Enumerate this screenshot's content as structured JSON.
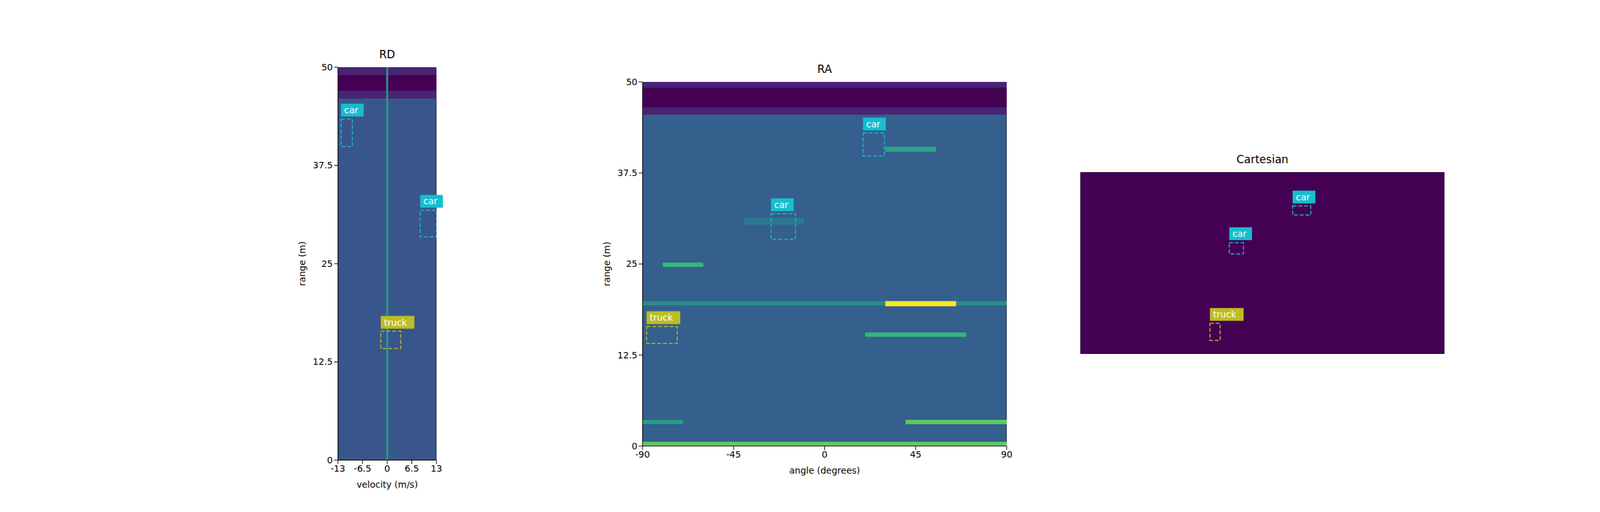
{
  "chart_data": [
    {
      "type": "heatmap",
      "title": "RD",
      "x_label": "velocity (m/s)",
      "y_label": "range (m)",
      "xlim": [
        -13,
        13
      ],
      "ylim": [
        0,
        50
      ],
      "xticks": [
        -13,
        -6.5,
        0,
        6.5,
        13
      ],
      "yticks": [
        0,
        12.5,
        25,
        37.5,
        50
      ],
      "color": "#38568b",
      "regions": [
        {
          "x": [
            -13,
            13
          ],
          "y": [
            46,
            50
          ],
          "color": "#482475"
        },
        {
          "x": [
            -13,
            13
          ],
          "y": [
            47,
            49
          ],
          "color": "#440154"
        },
        {
          "x": [
            -0.25,
            0.25
          ],
          "y": [
            0,
            50
          ],
          "color": "#2a9a85"
        }
      ],
      "boxes": [
        {
          "label": "car",
          "x": [
            -12.2,
            -9.2
          ],
          "y": [
            39.9,
            43.4
          ],
          "color": "#17becf"
        },
        {
          "label": "car",
          "x": [
            8.7,
            13
          ],
          "y": [
            28.4,
            31.8
          ],
          "color": "#17becf"
        },
        {
          "label": "truck",
          "x": [
            -1.7,
            3.6
          ],
          "y": [
            14.2,
            16.4
          ],
          "color": "#bcbd22"
        }
      ]
    },
    {
      "type": "heatmap",
      "title": "RA",
      "x_label": "angle (degrees)",
      "y_label": "range (m)",
      "xlim": [
        -90,
        90
      ],
      "ylim": [
        0,
        50
      ],
      "xticks": [
        -90,
        -45,
        0,
        45,
        90
      ],
      "yticks": [
        0,
        12.5,
        25,
        37.5,
        50
      ],
      "color": "#355f8d",
      "regions": [
        {
          "x": [
            -90,
            90
          ],
          "y": [
            45.5,
            50
          ],
          "color": "#482475"
        },
        {
          "x": [
            -90,
            90
          ],
          "y": [
            46.5,
            49.2
          ],
          "color": "#440154"
        },
        {
          "x": [
            -90,
            90
          ],
          "y": [
            19.3,
            19.9
          ],
          "color": "#2a8a8a"
        },
        {
          "x": [
            30,
            65
          ],
          "y": [
            19.2,
            19.9
          ],
          "color": "#fde725"
        },
        {
          "x": [
            -80,
            -60
          ],
          "y": [
            24.6,
            25.2
          ],
          "color": "#35b779"
        },
        {
          "x": [
            20,
            70
          ],
          "y": [
            15,
            15.6
          ],
          "color": "#35b779"
        },
        {
          "x": [
            30,
            55
          ],
          "y": [
            40.4,
            41.1
          ],
          "color": "#2ca58a"
        },
        {
          "x": [
            -40,
            -10
          ],
          "y": [
            30.4,
            31.4
          ],
          "color": "#2a788e"
        },
        {
          "x": [
            -90,
            -70
          ],
          "y": [
            3,
            3.6
          ],
          "color": "#2c9a8a"
        },
        {
          "x": [
            40,
            90
          ],
          "y": [
            3,
            3.6
          ],
          "color": "#5ec962"
        },
        {
          "x": [
            -90,
            90
          ],
          "y": [
            0,
            0.6
          ],
          "color": "#5ec962"
        }
      ],
      "boxes": [
        {
          "label": "car",
          "x": [
            19,
            29.5
          ],
          "y": [
            39.8,
            43
          ],
          "color": "#17becf"
        },
        {
          "label": "car",
          "x": [
            -26.5,
            -14.4
          ],
          "y": [
            28.4,
            31.9
          ],
          "color": "#17becf"
        },
        {
          "label": "truck",
          "x": [
            -88,
            -72.9
          ],
          "y": [
            14.1,
            16.4
          ],
          "color": "#bcbd22"
        }
      ]
    },
    {
      "type": "heatmap",
      "title": "Cartesian",
      "tick_labels": false,
      "xlim": [
        -50,
        50
      ],
      "ylim": [
        0,
        50
      ],
      "color": "#440154",
      "regions": [],
      "boxes": [
        {
          "label": "car",
          "x": [
            8.3,
            13.3
          ],
          "y": [
            38.2,
            40.7
          ],
          "color": "#17becf"
        },
        {
          "label": "car",
          "x": [
            -9.1,
            -5.2
          ],
          "y": [
            27.5,
            30.6
          ],
          "color": "#17becf"
        },
        {
          "label": "truck",
          "x": [
            -14.4,
            -11.6
          ],
          "y": [
            3.7,
            8.4
          ],
          "color": "#bcbd22"
        }
      ]
    }
  ]
}
